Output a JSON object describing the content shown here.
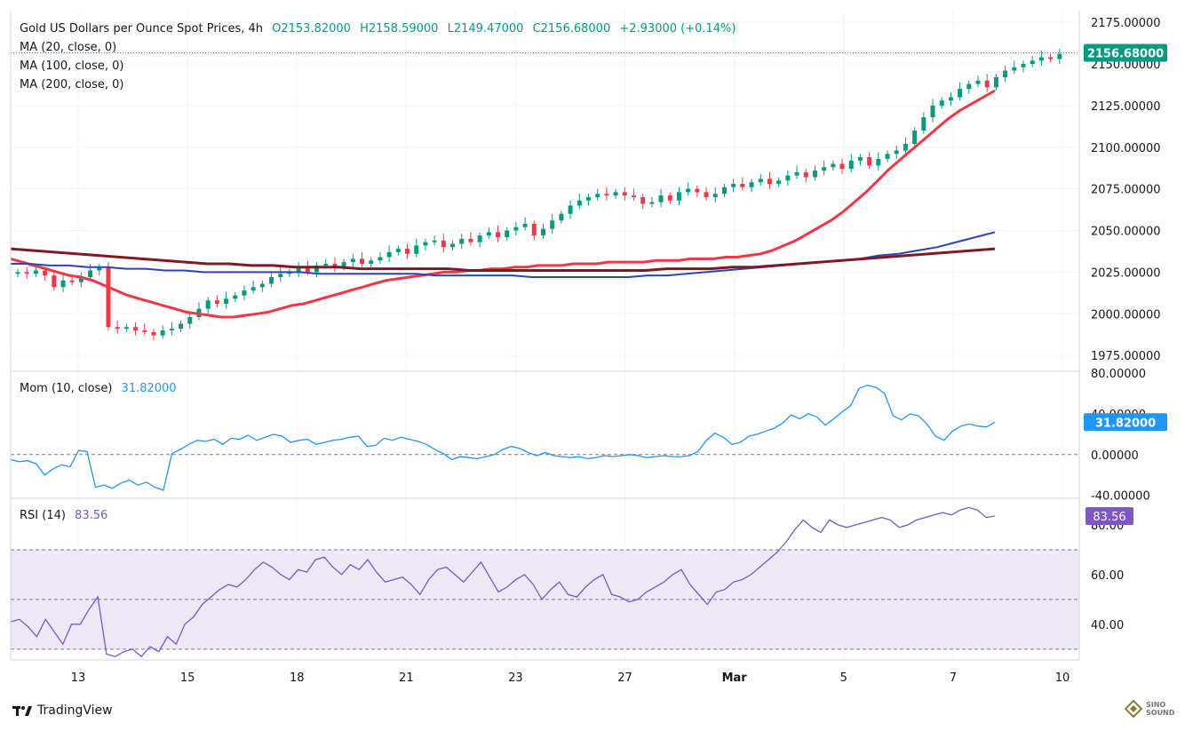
{
  "header": {
    "title": "Gold US Dollars per Ounce Spot Prices, 4h",
    "open": "O2153.82000",
    "high": "H2158.59000",
    "low": "L2149.47000",
    "close": "C2156.68000",
    "change": "+2.93000 (+0.14%)"
  },
  "indicators": {
    "ma20": "MA (20, close, 0)",
    "ma100": "MA (100, close, 0)",
    "ma200": "MA (200, close, 0)",
    "mom_label": "Mom (10, close)",
    "mom_value": "31.82000",
    "rsi_label": "RSI (14)",
    "rsi_value": "83.56"
  },
  "colors": {
    "up": "#089981",
    "down": "#f23645",
    "ma20": "#f23645",
    "ma100": "#2b45b8",
    "ma200": "#801922",
    "mom": "#2196f3",
    "rsi": "#7e57c2",
    "rsi_band": "#ede7f6"
  },
  "branding": {
    "logo_text": "TradingView",
    "watermark": "SINO SOUND"
  },
  "chart_data": {
    "type": "candlestick",
    "x_ticks": [
      "13",
      "15",
      "18",
      "21",
      "23",
      "27",
      "Mar",
      "5",
      "7",
      "10"
    ],
    "price": {
      "y_ticks": [
        "2175.00000",
        "2150.00000",
        "2125.00000",
        "2100.00000",
        "2075.00000",
        "2050.00000",
        "2025.00000",
        "2000.00000",
        "1975.00000"
      ],
      "ylim": [
        1966,
        2182
      ],
      "last_price": 2156.68,
      "last_label": "2156.68000",
      "closes": [
        2025,
        2024,
        2026,
        2023,
        2016,
        2020,
        2019,
        2022,
        2026,
        2028,
        1992,
        1991,
        1992,
        1990,
        1989,
        1987,
        1990,
        1991,
        1994,
        1998,
        2003,
        2008,
        2006,
        2009,
        2011,
        2014,
        2016,
        2018,
        2022,
        2024,
        2025,
        2028,
        2025,
        2029,
        2030,
        2028,
        2031,
        2033,
        2030,
        2032,
        2034,
        2037,
        2039,
        2036,
        2041,
        2043,
        2044,
        2040,
        2042,
        2045,
        2043,
        2047,
        2049,
        2046,
        2050,
        2052,
        2054,
        2047,
        2051,
        2056,
        2060,
        2065,
        2068,
        2070,
        2072,
        2071,
        2073,
        2071,
        2070,
        2066,
        2067,
        2071,
        2068,
        2073,
        2075,
        2073,
        2070,
        2072,
        2076,
        2078,
        2076,
        2079,
        2081,
        2078,
        2080,
        2083,
        2085,
        2082,
        2086,
        2088,
        2090,
        2087,
        2092,
        2094,
        2089,
        2093,
        2096,
        2098,
        2102,
        2110,
        2118,
        2125,
        2128,
        2130,
        2135,
        2138,
        2140,
        2136,
        2142,
        2146,
        2148,
        2150,
        2152,
        2154,
        2153,
        2156
      ]
    },
    "series": [
      {
        "name": "MA (20, close, 0)",
        "values": [
          2033,
          2031,
          2029,
          2027,
          2025,
          2023,
          2022,
          2020,
          2017,
          2014,
          2011,
          2009,
          2007,
          2005,
          2003,
          2001,
          2000,
          1999,
          1998,
          1998,
          1999,
          2000,
          2001,
          2003,
          2005,
          2006,
          2008,
          2010,
          2012,
          2014,
          2016,
          2018,
          2020,
          2021,
          2022,
          2023,
          2024,
          2025,
          2025,
          2026,
          2026,
          2027,
          2027,
          2028,
          2028,
          2029,
          2029,
          2029,
          2030,
          2030,
          2030,
          2031,
          2031,
          2031,
          2031,
          2032,
          2032,
          2032,
          2033,
          2033,
          2033,
          2034,
          2034,
          2035,
          2036,
          2038,
          2041,
          2044,
          2048,
          2052,
          2056,
          2061,
          2067,
          2073,
          2080,
          2087,
          2093,
          2099,
          2105,
          2111,
          2117,
          2122,
          2126,
          2130,
          2134
        ]
      },
      {
        "name": "MA (100, close, 0)",
        "values": [
          2030,
          2030,
          2029,
          2029,
          2028,
          2028,
          2027,
          2027,
          2026,
          2026,
          2025,
          2025,
          2025,
          2025,
          2025,
          2025,
          2024,
          2024,
          2024,
          2024,
          2024,
          2024,
          2023,
          2023,
          2023,
          2023,
          2023,
          2022,
          2022,
          2022,
          2022,
          2022,
          2022,
          2023,
          2023,
          2024,
          2025,
          2026,
          2027,
          2028,
          2029,
          2030,
          2031,
          2032,
          2033,
          2035,
          2036,
          2038,
          2040,
          2043,
          2046,
          2049
        ]
      },
      {
        "name": "MA (200, close, 0)",
        "values": [
          2039,
          2038,
          2037,
          2036,
          2035,
          2034,
          2033,
          2032,
          2031,
          2030,
          2030,
          2029,
          2029,
          2028,
          2028,
          2028,
          2027,
          2027,
          2027,
          2027,
          2027,
          2026,
          2026,
          2026,
          2026,
          2026,
          2026,
          2026,
          2026,
          2026,
          2027,
          2027,
          2027,
          2028,
          2028,
          2029,
          2030,
          2031,
          2032,
          2033,
          2034,
          2035,
          2036,
          2037,
          2038,
          2039
        ]
      }
    ],
    "momentum": {
      "y_ticks": [
        "80.00000",
        "40.00000",
        "0.00000",
        "-40.00000"
      ],
      "ylim": [
        -42,
        80
      ],
      "last_label": "31.82000",
      "values": [
        -5,
        -7,
        -6,
        -9,
        -20,
        -14,
        -10,
        -12,
        4,
        3,
        -32,
        -30,
        -33,
        -28,
        -25,
        -30,
        -27,
        -32,
        -35,
        1,
        5,
        10,
        14,
        13,
        15,
        10,
        16,
        15,
        19,
        14,
        17,
        20,
        18,
        12,
        14,
        15,
        10,
        12,
        14,
        15,
        17,
        18,
        8,
        9,
        16,
        14,
        17,
        15,
        13,
        10,
        5,
        1,
        -5,
        -2,
        -3,
        -4,
        -2,
        0,
        5,
        8,
        6,
        2,
        -1,
        2,
        -1,
        -2,
        -3,
        -2,
        -4,
        -3,
        -1,
        -2,
        -1,
        0,
        -1,
        -3,
        -2,
        -1,
        -2,
        -2,
        -1,
        3,
        14,
        21,
        17,
        10,
        12,
        18,
        20,
        23,
        26,
        31,
        39,
        35,
        40,
        37,
        29,
        35,
        42,
        48,
        65,
        68,
        66,
        60,
        38,
        34,
        40,
        38,
        30,
        18,
        14,
        23,
        28,
        30,
        28,
        27,
        31.82
      ]
    },
    "rsi": {
      "y_ticks": [
        "80.00",
        "60.00",
        "40.00"
      ],
      "ylim": [
        26,
        90
      ],
      "band": [
        30,
        70
      ],
      "last_label": "83.56",
      "values": [
        41,
        42,
        39,
        35,
        42,
        37,
        32,
        40,
        40,
        46,
        51,
        28,
        27,
        29,
        30,
        27,
        31,
        29,
        35,
        32,
        40,
        43,
        48,
        51,
        54,
        56,
        55,
        58,
        62,
        65,
        63,
        60,
        58,
        62,
        61,
        66,
        67,
        63,
        60,
        64,
        62,
        66,
        61,
        57,
        58,
        59,
        56,
        52,
        58,
        62,
        63,
        60,
        57,
        61,
        65,
        59,
        53,
        55,
        58,
        60,
        56,
        50,
        54,
        57,
        52,
        51,
        55,
        58,
        60,
        52,
        51,
        49,
        50,
        53,
        55,
        57,
        60,
        62,
        56,
        52,
        48,
        53,
        54,
        57,
        58,
        60,
        63,
        66,
        69,
        73,
        78,
        82,
        79,
        77,
        82,
        80,
        79,
        80,
        81,
        82,
        83,
        82,
        79,
        80,
        82,
        83,
        84,
        85,
        84,
        86,
        87,
        86,
        83,
        83.56
      ]
    }
  }
}
